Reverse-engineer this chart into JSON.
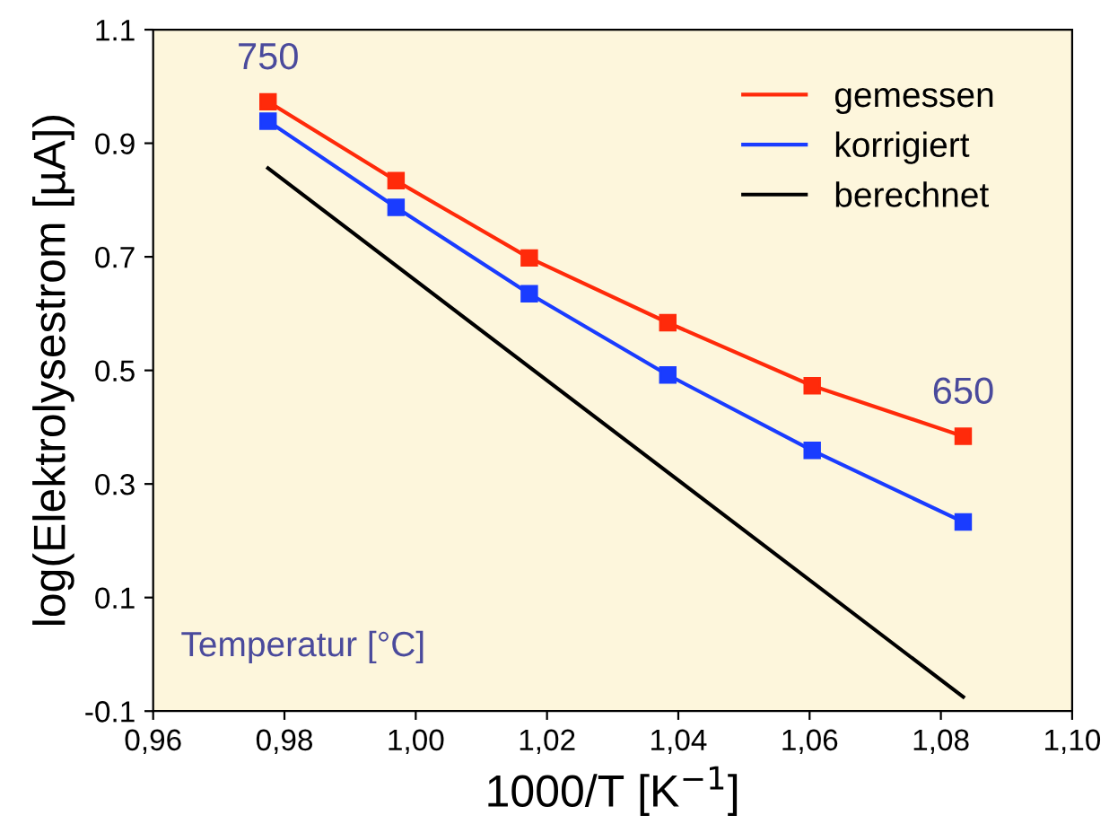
{
  "chart_data": {
    "type": "line",
    "xlabel": "1000/T [K$^{−1}$]",
    "ylabel": "log(Elektrolysestrom [µA])",
    "x": [
      0.9775,
      0.997,
      1.0173,
      1.0384,
      1.0604,
      1.0834
    ],
    "series": [
      {
        "name": "gemessen",
        "color": "#ff2a0a",
        "values": [
          0.973,
          0.834,
          0.698,
          0.584,
          0.473,
          0.384
        ]
      },
      {
        "name": "korrigiert",
        "color": "#1a3cff",
        "values": [
          0.939,
          0.787,
          0.635,
          0.492,
          0.359,
          0.233
        ]
      },
      {
        "name": "berechnet",
        "color": "#000000",
        "marker": "none",
        "x": [
          0.9775,
          1.0834
        ],
        "values": [
          0.856,
          -0.075
        ]
      }
    ],
    "marker": "square",
    "line_style": "solid",
    "legend": "top right",
    "grid": false,
    "xlim": [
      0.96,
      1.1
    ],
    "xticks": [
      {
        "value": 0.96,
        "label": "0,96"
      },
      {
        "value": 0.98,
        "label": "0,98"
      },
      {
        "value": 1.0,
        "label": "1,00"
      },
      {
        "value": 1.02,
        "label": "1,02"
      },
      {
        "value": 1.04,
        "label": "1,04"
      },
      {
        "value": 1.06,
        "label": "1,06"
      },
      {
        "value": 1.08,
        "label": "1,08"
      },
      {
        "value": 1.1,
        "label": "1,10"
      }
    ],
    "ylim": [
      -0.1,
      1.1
    ],
    "yticks": [
      -0.1,
      0.1,
      0.3,
      0.5,
      0.7,
      0.9,
      1.1
    ],
    "annotations": [
      {
        "text": "750",
        "x": 0.9775,
        "y": 0.973
      },
      {
        "text": "650",
        "x": 1.0834,
        "y": 0.384
      },
      "Temperatur [°C]"
    ]
  }
}
